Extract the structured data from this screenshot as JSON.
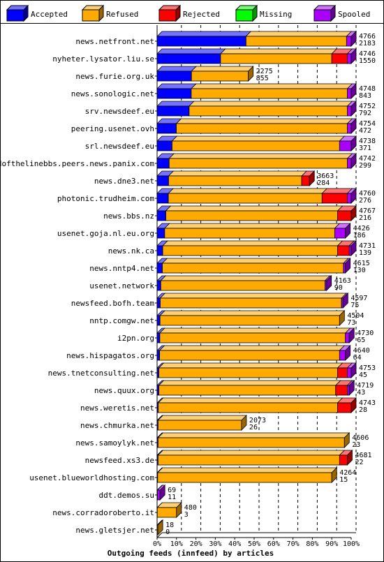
{
  "chart_data": {
    "type": "bar",
    "orientation": "horizontal",
    "stacked": true,
    "style": "3d",
    "title": "Outgoing feeds (innfeed) by articles",
    "legend_position": "top",
    "xlim": [
      0,
      100
    ],
    "x_ticks": [
      "0%",
      "10%",
      "20%",
      "30%",
      "40%",
      "50%",
      "60%",
      "70%",
      "80%",
      "90%",
      "100%"
    ],
    "grid": true,
    "series": [
      {
        "name": "Accepted",
        "color": "#0000ff"
      },
      {
        "name": "Refused",
        "color": "#ffaa00"
      },
      {
        "name": "Rejected",
        "color": "#ff0000"
      },
      {
        "name": "Missing",
        "color": "#00ff00"
      },
      {
        "name": "Spooled",
        "color": "#aa00ff"
      }
    ],
    "rows": [
      {
        "label": "news.netfront.net",
        "offered": "4766",
        "accepted": "2183",
        "segments": [
          45.8,
          51.8,
          0,
          0,
          2.4
        ]
      },
      {
        "label": "nyheter.lysator.liu.se",
        "offered": "4746",
        "accepted": "1550",
        "segments": [
          32.7,
          57.3,
          8.0,
          0,
          2.0
        ]
      },
      {
        "label": "news.furie.org.uk",
        "offered": "2275",
        "accepted": "855",
        "segments": [
          17.7,
          29.3,
          0,
          0,
          0
        ]
      },
      {
        "label": "news.sonologic.net",
        "offered": "4748",
        "accepted": "843",
        "segments": [
          17.6,
          80.4,
          0,
          0,
          2.0
        ]
      },
      {
        "label": "srv.newsdeef.eu",
        "offered": "4752",
        "accepted": "792",
        "segments": [
          16.5,
          81.5,
          0,
          0,
          2.0
        ]
      },
      {
        "label": "peering.usenet.ovh",
        "offered": "4754",
        "accepted": "472",
        "segments": [
          9.9,
          88.1,
          0,
          0,
          2.0
        ]
      },
      {
        "label": "srl.newsdeef.eu",
        "offered": "4738",
        "accepted": "371",
        "segments": [
          7.7,
          86.3,
          0,
          0,
          6.0
        ]
      },
      {
        "label": "endofthelinebbs.peers.news.panix.com",
        "offered": "4742",
        "accepted": "299",
        "segments": [
          6.2,
          91.8,
          0,
          0,
          2.0
        ]
      },
      {
        "label": "news.dne3.net",
        "offered": "3663",
        "accepted": "284",
        "segments": [
          5.9,
          68.6,
          4.0,
          0,
          0
        ]
      },
      {
        "label": "photonic.trudheim.com",
        "offered": "4760",
        "accepted": "276",
        "segments": [
          5.8,
          79.2,
          13.0,
          0,
          2.0
        ]
      },
      {
        "label": "news.bbs.nz",
        "offered": "4767",
        "accepted": "216",
        "segments": [
          4.5,
          88.5,
          7.0,
          0,
          0
        ]
      },
      {
        "label": "usenet.goja.nl.eu.org",
        "offered": "4426",
        "accepted": "186",
        "segments": [
          3.9,
          87.6,
          0,
          0,
          5.5
        ]
      },
      {
        "label": "news.nk.ca",
        "offered": "4731",
        "accepted": "139",
        "segments": [
          2.9,
          90.1,
          6.0,
          0,
          1.0
        ]
      },
      {
        "label": "news.nntp4.net",
        "offered": "4615",
        "accepted": "130",
        "segments": [
          2.7,
          93.3,
          0,
          0,
          1.0
        ]
      },
      {
        "label": "usenet.network",
        "offered": "4163",
        "accepted": "90",
        "segments": [
          1.9,
          84.6,
          0,
          0,
          0.8
        ]
      },
      {
        "label": "newsfeed.bofh.team",
        "offered": "4597",
        "accepted": "75",
        "segments": [
          1.6,
          93.4,
          0,
          0,
          0.8
        ]
      },
      {
        "label": "nntp.comgw.net",
        "offered": "4504",
        "accepted": "73",
        "segments": [
          1.5,
          92.5,
          0,
          0,
          0
        ]
      },
      {
        "label": "i2pn.org",
        "offered": "4730",
        "accepted": "65",
        "segments": [
          1.4,
          95.6,
          0,
          0,
          2.0
        ]
      },
      {
        "label": "news.hispagatos.org",
        "offered": "4640",
        "accepted": "64",
        "segments": [
          1.3,
          92.7,
          0,
          0,
          3.0
        ]
      },
      {
        "label": "news.tnetconsulting.net",
        "offered": "4753",
        "accepted": "45",
        "segments": [
          0.9,
          92.1,
          5.0,
          0,
          2.0
        ]
      },
      {
        "label": "news.quux.org",
        "offered": "4719",
        "accepted": "43",
        "segments": [
          0.9,
          91.1,
          6.0,
          0,
          1.0
        ]
      },
      {
        "label": "news.weretis.net",
        "offered": "4743",
        "accepted": "28",
        "segments": [
          0.6,
          92.4,
          7.0,
          0,
          0
        ]
      },
      {
        "label": "news.chmurka.net",
        "offered": "2073",
        "accepted": "26",
        "segments": [
          0.5,
          43.0,
          0,
          0,
          0
        ]
      },
      {
        "label": "news.samoylyk.net",
        "offered": "4606",
        "accepted": "23",
        "segments": [
          0.5,
          96.0,
          0,
          0,
          0
        ]
      },
      {
        "label": "newsfeed.xs3.de",
        "offered": "4681",
        "accepted": "22",
        "segments": [
          0.5,
          93.5,
          4.0,
          0,
          0
        ]
      },
      {
        "label": "usenet.blueworldhosting.com",
        "offered": "4264",
        "accepted": "15",
        "segments": [
          0.3,
          89.7,
          0,
          0,
          0
        ]
      },
      {
        "label": "ddt.demos.su",
        "offered": "69",
        "accepted": "11",
        "segments": [
          0.2,
          0,
          0,
          0,
          1.3
        ]
      },
      {
        "label": "news.corradoroberto.it",
        "offered": "480",
        "accepted": "3",
        "segments": [
          0.1,
          9.9,
          0,
          0,
          0
        ]
      },
      {
        "label": "news.gletsjer.net",
        "offered": "18",
        "accepted": "0",
        "segments": [
          0,
          0.4,
          0,
          0,
          0
        ]
      }
    ]
  }
}
